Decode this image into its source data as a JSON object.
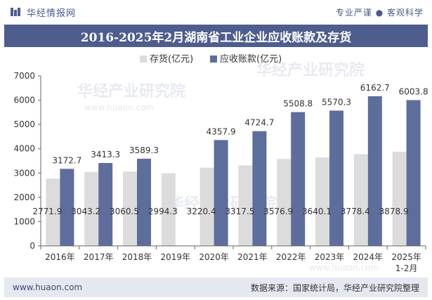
{
  "header": {
    "brand": "华经情报网",
    "tagline": "专业严谨 ● 客观科学"
  },
  "title": "2016-2025年2月湖南省工业企业应收账款及存货",
  "footer": {
    "website": "www.huaon.com",
    "source": "数据来源：国家统计局，华经产业研究院整理"
  },
  "watermark": {
    "text": "华经产业研究院",
    "url": "www.huaon.com"
  },
  "colors": {
    "inventory": "#dcdcdc",
    "receivables": "#5d6e9c",
    "title_band": "#4e5d8e"
  },
  "chart_data": {
    "type": "bar",
    "title": "2016-2025年2月湖南省工业企业应收账款及存货",
    "categories": [
      "2016年",
      "2017年",
      "2018年",
      "2019年",
      "2020年",
      "2021年",
      "2022年",
      "2023年",
      "2024年",
      "2025年\n1-2月"
    ],
    "series": [
      {
        "name": "存货(亿元)",
        "values": [
          2771.9,
          3043.2,
          3060.5,
          2994.3,
          3220.4,
          3317.5,
          3576.9,
          3640.1,
          3778.4,
          3878.9
        ]
      },
      {
        "name": "应收账款(亿元)",
        "values": [
          3172.7,
          3413.3,
          3589.3,
          null,
          4357.9,
          4724.7,
          5508.8,
          5570.3,
          6162.7,
          6003.8
        ]
      }
    ],
    "value_labels": {
      "inventory": [
        "2771.9",
        "3043.2",
        "3060.5",
        "2994.3",
        "3220.4",
        "3317.5",
        "3576.9",
        "3640.1",
        "3778.4",
        "3878.9"
      ],
      "receivables": [
        "3172.7",
        "3413.3",
        "3589.3",
        "",
        "4357.9",
        "4724.7",
        "5508.8",
        "5570.3",
        "6162.7",
        "6003.8"
      ]
    },
    "ylim": [
      0,
      7000
    ],
    "yticks": [
      0,
      1000,
      2000,
      3000,
      4000,
      5000,
      6000,
      7000
    ],
    "xlabel": "",
    "ylabel": "",
    "legend": "top-center",
    "grid": false
  }
}
